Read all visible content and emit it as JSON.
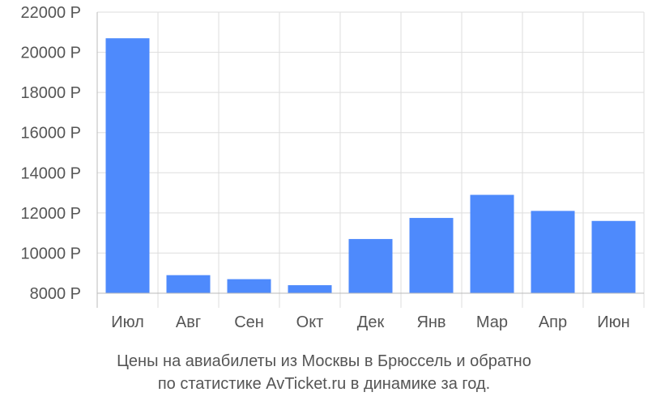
{
  "chart_data": {
    "type": "bar",
    "categories": [
      "Июл",
      "Авг",
      "Сен",
      "Окт",
      "Дек",
      "Янв",
      "Мар",
      "Апр",
      "Июн"
    ],
    "values": [
      20700,
      8900,
      8700,
      8400,
      10700,
      11750,
      12900,
      12100,
      11600
    ],
    "ylim": [
      8000,
      22000
    ],
    "yticks": [
      "8000 Р",
      "10000 Р",
      "12000 Р",
      "14000 Р",
      "16000 Р",
      "18000 Р",
      "20000 Р",
      "22000 Р"
    ],
    "title": "",
    "xlabel": "",
    "ylabel": "",
    "grid": true,
    "bar_color": "#4e8afc",
    "grid_color": "#dddddd"
  },
  "caption": {
    "line1": "Цены на авиабилеты из Москвы в Брюссель и обратно",
    "line2": "по статистике AvTicket.ru в динамике за год."
  }
}
